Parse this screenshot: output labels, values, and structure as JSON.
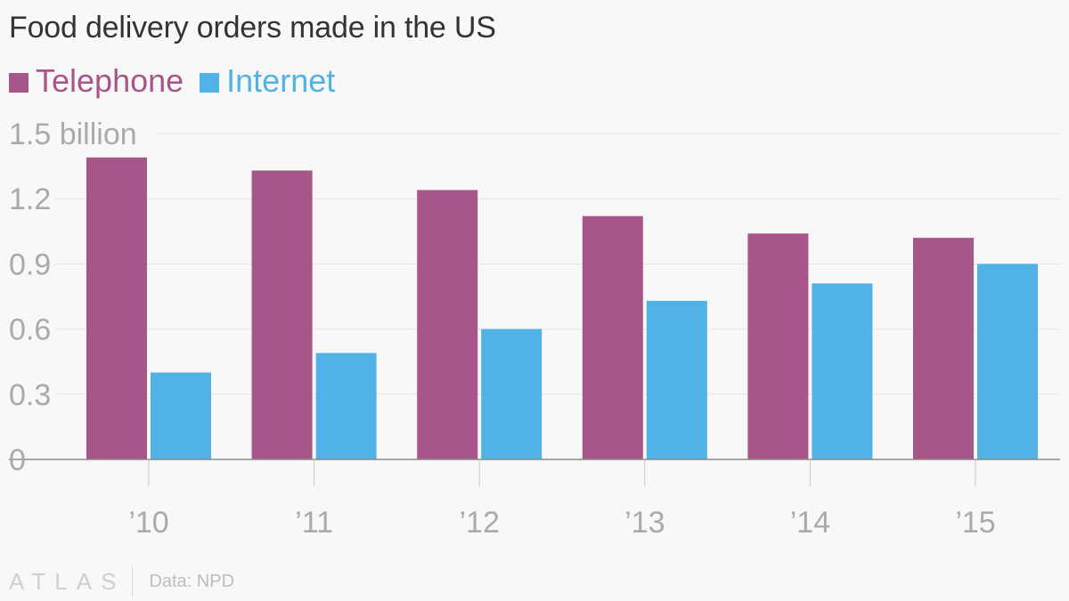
{
  "chart_data": {
    "type": "bar",
    "title": "Food delivery orders made in the US",
    "categories": [
      "’10",
      "’11",
      "’12",
      "’13",
      "’14",
      "’15"
    ],
    "series": [
      {
        "name": "Telephone",
        "color": "#a8568a",
        "values": [
          1.39,
          1.33,
          1.24,
          1.12,
          1.04,
          1.02
        ]
      },
      {
        "name": "Internet",
        "color": "#51b2e5",
        "values": [
          0.4,
          0.49,
          0.6,
          0.73,
          0.81,
          0.9
        ]
      }
    ],
    "ylim": [
      0,
      1.5
    ],
    "yticks": [
      0,
      0.3,
      0.6,
      0.9,
      1.2,
      1.5
    ],
    "ytick_labels": [
      "0",
      "0.3",
      "0.6",
      "0.9",
      "1.2",
      "1.5 billion"
    ],
    "grid": true,
    "legend": "top-left"
  },
  "footer": {
    "logo": "ATLAS",
    "source": "Data: NPD"
  }
}
